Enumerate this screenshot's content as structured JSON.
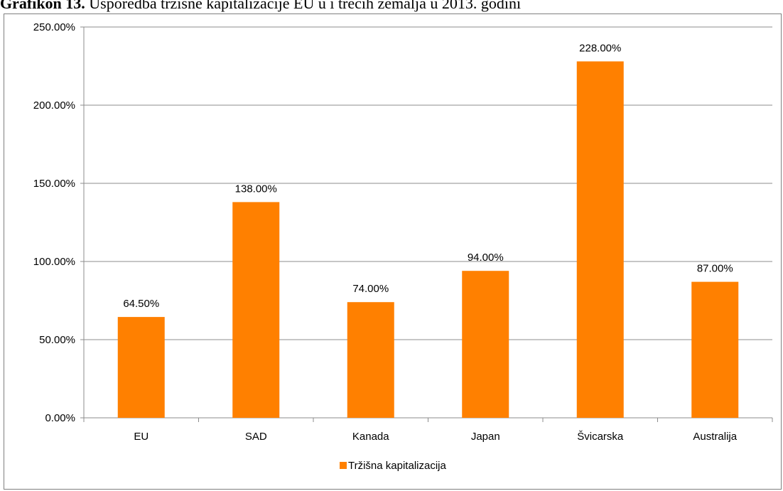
{
  "caption": {
    "lead": "Grafikon 13.",
    "rest": " Usporedba tržišne kapitalizacije EU u i trećih zemalja u 2013. godini"
  },
  "chart_data": {
    "type": "bar",
    "title": "",
    "xlabel": "",
    "ylabel": "",
    "categories": [
      "EU",
      "SAD",
      "Kanada",
      "Japan",
      "Švicarska",
      "Australija"
    ],
    "series": [
      {
        "name": "Tržišna kapitalizacija",
        "values": [
          64.5,
          138.0,
          74.0,
          94.0,
          228.0,
          87.0
        ],
        "data_labels": [
          "64.50%",
          "138.00%",
          "74.00%",
          "94.00%",
          "228.00%",
          "87.00%"
        ],
        "color": "#ff8000"
      }
    ],
    "ylim": [
      0,
      250
    ],
    "yticks": [
      0,
      50,
      100,
      150,
      200,
      250
    ],
    "ytick_labels": [
      "0.00%",
      "50.00%",
      "100.00%",
      "150.00%",
      "200.00%",
      "250.00%"
    ],
    "grid": true,
    "gridline_color": "#8c8c8c",
    "legend_position": "bottom"
  }
}
